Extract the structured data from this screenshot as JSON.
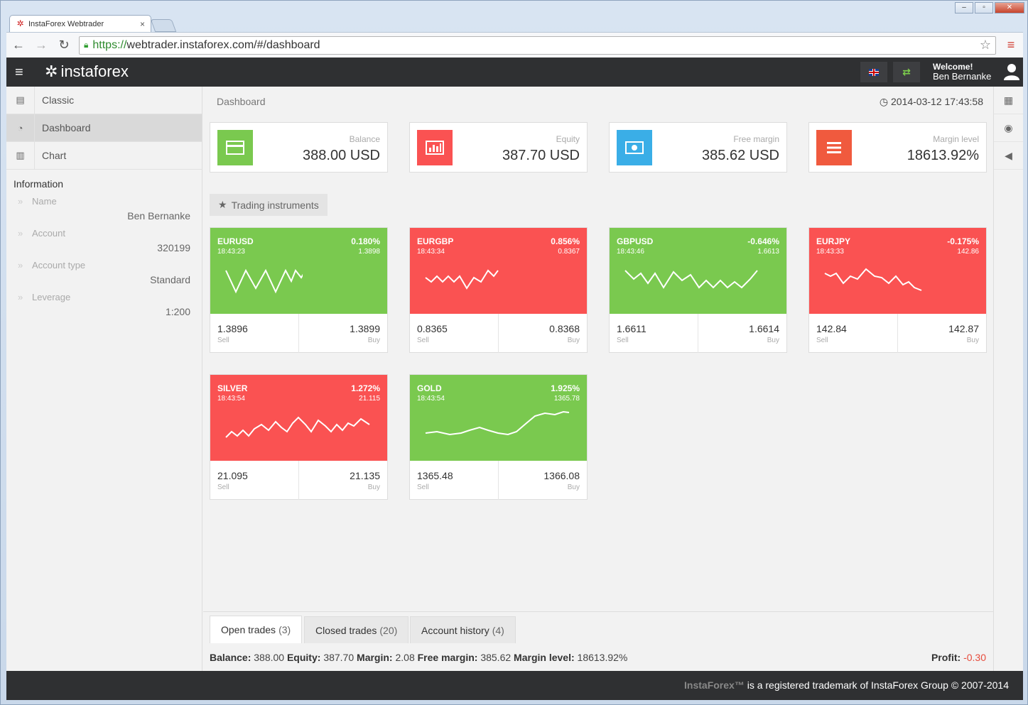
{
  "browser": {
    "tab_title": "InstaForex Webtrader",
    "url_scheme": "https://",
    "url_rest": "webtrader.instaforex.com/#/dashboard"
  },
  "topbar": {
    "logo": "instaforex",
    "welcome": "Welcome!",
    "user_name": "Ben Bernanke"
  },
  "sidebar": {
    "items": [
      {
        "label": "Classic"
      },
      {
        "label": "Dashboard"
      },
      {
        "label": "Chart"
      }
    ],
    "info_title": "Information",
    "info": [
      {
        "label": "Name",
        "value": "Ben Bernanke"
      },
      {
        "label": "Account",
        "value": "320199"
      },
      {
        "label": "Account type",
        "value": "Standard"
      },
      {
        "label": "Leverage",
        "value": "1:200"
      }
    ]
  },
  "main": {
    "breadcrumb": "Dashboard",
    "datetime": "2014-03-12 17:43:58"
  },
  "cards": [
    {
      "label": "Balance",
      "value": "388.00 USD",
      "color": "#7ac94f"
    },
    {
      "label": "Equity",
      "value": "387.70 USD",
      "color": "#fa5252"
    },
    {
      "label": "Free margin",
      "value": "385.62 USD",
      "color": "#3aaee7"
    },
    {
      "label": "Margin level",
      "value": "18613.92%",
      "color": "#f05a3e"
    }
  ],
  "trading_instruments_label": "Trading instruments",
  "instruments": [
    {
      "symbol": "EURUSD",
      "time": "18:43:23",
      "change": "0.180%",
      "last": "1.3898",
      "sell": "1.3896",
      "buy": "1.3899",
      "sell_label": "Sell",
      "buy_label": "Buy",
      "trend": "up"
    },
    {
      "symbol": "EURGBP",
      "time": "18:43:34",
      "change": "0.856%",
      "last": "0.8367",
      "sell": "0.8365",
      "buy": "0.8368",
      "sell_label": "Sell",
      "buy_label": "Buy",
      "trend": "down"
    },
    {
      "symbol": "GBPUSD",
      "time": "18:43:46",
      "change": "-0.646%",
      "last": "1.6613",
      "sell": "1.6611",
      "buy": "1.6614",
      "sell_label": "Sell",
      "buy_label": "Buy",
      "trend": "up"
    },
    {
      "symbol": "EURJPY",
      "time": "18:43:33",
      "change": "-0.175%",
      "last": "142.86",
      "sell": "142.84",
      "buy": "142.87",
      "sell_label": "Sell",
      "buy_label": "Buy",
      "trend": "down"
    },
    {
      "symbol": "SILVER",
      "time": "18:43:54",
      "change": "1.272%",
      "last": "21.115",
      "sell": "21.095",
      "buy": "21.135",
      "sell_label": "Sell",
      "buy_label": "Buy",
      "trend": "down"
    },
    {
      "symbol": "GOLD",
      "time": "18:43:54",
      "change": "1.925%",
      "last": "1365.78",
      "sell": "1365.48",
      "buy": "1366.08",
      "sell_label": "Sell",
      "buy_label": "Buy",
      "trend": "up"
    }
  ],
  "bottom_tabs": [
    {
      "label": "Open trades",
      "count": "(3)"
    },
    {
      "label": "Closed trades",
      "count": "(20)"
    },
    {
      "label": "Account history",
      "count": "(4)"
    }
  ],
  "summary": {
    "balance_label": "Balance:",
    "balance": "388.00",
    "equity_label": "Equity:",
    "equity": "387.70",
    "margin_label": "Margin:",
    "margin": "2.08",
    "free_margin_label": "Free margin:",
    "free_margin": "385.62",
    "margin_level_label": "Margin level:",
    "margin_level": "18613.92%",
    "profit_label": "Profit:",
    "profit": "-0.30"
  },
  "footer": {
    "brand": "InstaForex™",
    "text": " is a registered trademark of InstaForex Group © 2007-2014"
  }
}
